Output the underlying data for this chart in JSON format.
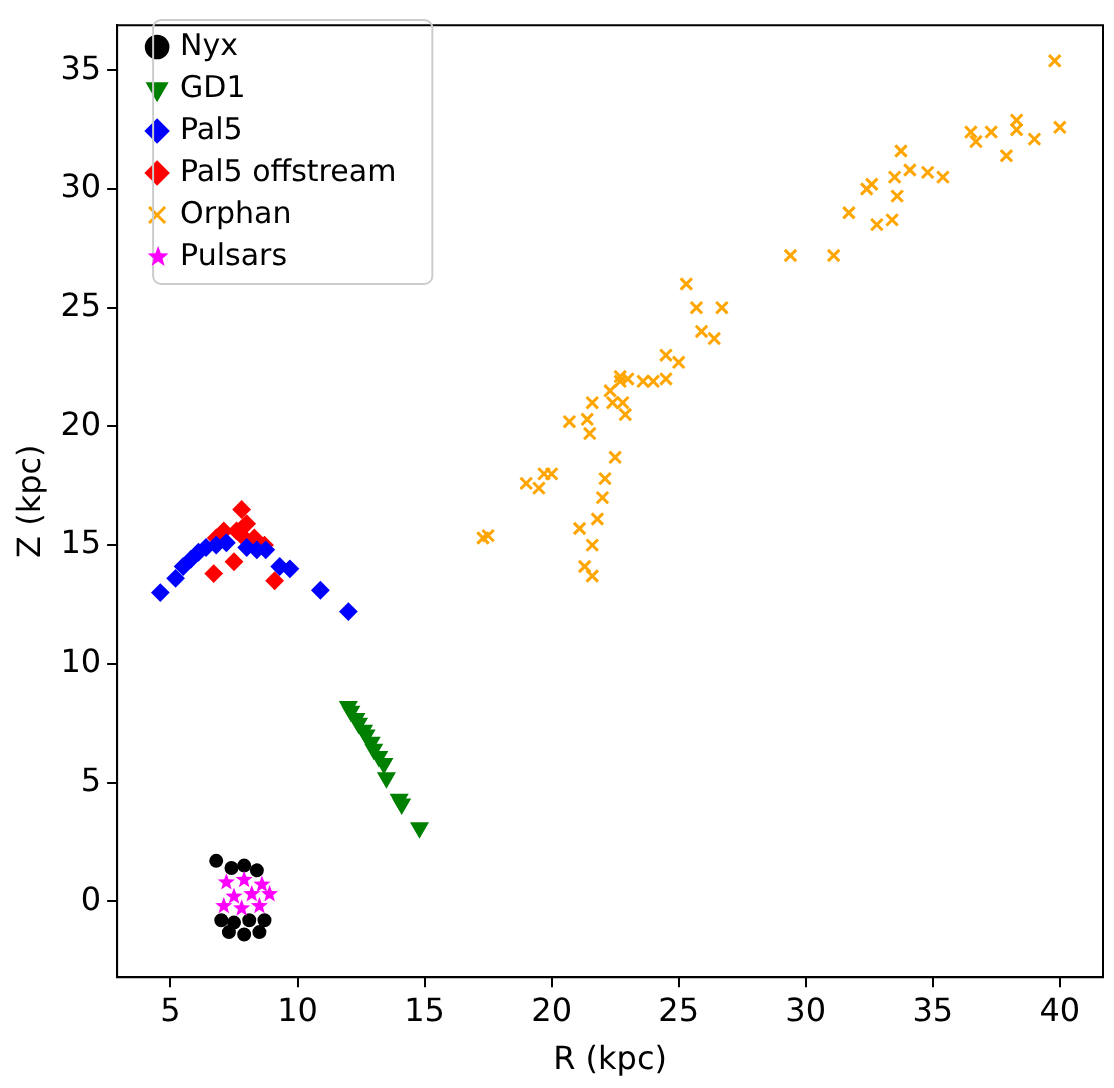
{
  "chart_data": {
    "type": "scatter",
    "xlabel": "R (kpc)",
    "ylabel": "Z (kpc)",
    "xlim": [
      2.9,
      41.7
    ],
    "ylim": [
      -3.2,
      36.9
    ],
    "xticks": [
      5,
      10,
      15,
      20,
      25,
      30,
      35,
      40
    ],
    "yticks": [
      0,
      5,
      10,
      15,
      20,
      25,
      30,
      35
    ],
    "grid": false,
    "legend": "top left",
    "series": [
      {
        "name": "Nyx",
        "color": "#000000",
        "marker": "circle",
        "x": [
          6.8,
          7.4,
          7.9,
          8.4,
          7.0,
          7.5,
          8.1,
          8.7,
          7.3,
          7.9,
          8.5
        ],
        "values": [
          1.7,
          1.4,
          1.5,
          1.3,
          -0.8,
          -0.9,
          -0.8,
          -0.8,
          -1.3,
          -1.4,
          -1.3
        ]
      },
      {
        "name": "GD1",
        "color": "#008000",
        "marker": "triangle",
        "x": [
          12.0,
          12.1,
          12.3,
          12.4,
          12.6,
          12.7,
          12.9,
          13.0,
          13.2,
          13.4,
          13.5,
          14.0,
          14.1,
          14.8
        ],
        "values": [
          8.2,
          8.0,
          7.7,
          7.5,
          7.2,
          7.0,
          6.7,
          6.4,
          6.1,
          5.8,
          5.2,
          4.3,
          4.1,
          3.1
        ]
      },
      {
        "name": "Pal5",
        "color": "#0000ff",
        "marker": "diamond",
        "x": [
          4.6,
          5.2,
          5.5,
          5.8,
          6.1,
          6.4,
          6.8,
          7.2,
          8.0,
          8.4,
          8.75,
          9.3,
          9.7,
          10.9,
          12.0
        ],
        "values": [
          13.0,
          13.6,
          14.1,
          14.4,
          14.7,
          14.9,
          15.0,
          15.1,
          14.9,
          14.8,
          14.8,
          14.1,
          14.0,
          13.1,
          12.2
        ]
      },
      {
        "name": "Pal5 offstream",
        "color": "#ff0000",
        "marker": "diamond",
        "x": [
          6.8,
          7.1,
          7.8,
          7.6,
          7.9,
          8.0,
          8.3,
          8.7,
          6.7,
          7.5,
          9.1
        ],
        "values": [
          15.3,
          15.6,
          16.5,
          15.6,
          15.3,
          15.9,
          15.3,
          15.0,
          13.8,
          14.3,
          13.5
        ]
      },
      {
        "name": "Orphan",
        "color": "#ffa500",
        "marker": "cross",
        "x": [
          17.3,
          17.5,
          19.0,
          19.5,
          19.7,
          20.0,
          21.3,
          21.6,
          21.1,
          21.6,
          21.8,
          22.0,
          22.1,
          22.5,
          20.7,
          21.4,
          21.6,
          21.5,
          22.3,
          22.4,
          22.8,
          22.9,
          22.7,
          22.7,
          23.0,
          23.6,
          24.0,
          24.5,
          24.5,
          25.0,
          25.3,
          25.7,
          25.9,
          26.4,
          26.7,
          29.4,
          31.1,
          31.7,
          32.8,
          33.4,
          32.4,
          32.6,
          33.5,
          33.6,
          33.75,
          34.1,
          34.8,
          35.4,
          36.5,
          36.7,
          37.3,
          37.9,
          38.3,
          38.3,
          39.0,
          40.0,
          39.8
        ],
        "values": [
          15.3,
          15.4,
          17.6,
          17.4,
          18.0,
          18.0,
          14.1,
          13.7,
          15.7,
          15.0,
          16.1,
          17.0,
          17.8,
          18.7,
          20.2,
          20.3,
          21.0,
          19.7,
          21.5,
          21.0,
          21.0,
          20.5,
          21.9,
          22.1,
          22.0,
          21.9,
          21.9,
          22.0,
          23.0,
          22.7,
          26.0,
          25.0,
          24.0,
          23.7,
          25.0,
          27.2,
          27.2,
          29.0,
          28.5,
          28.7,
          30.0,
          30.2,
          30.5,
          29.7,
          31.6,
          30.8,
          30.7,
          30.5,
          32.4,
          32.0,
          32.4,
          31.4,
          32.9,
          32.5,
          32.1,
          32.6,
          35.4
        ]
      },
      {
        "name": "Pulsars",
        "color": "#ff00ff",
        "marker": "star",
        "x": [
          7.2,
          7.9,
          8.6,
          7.5,
          8.2,
          8.9,
          7.1,
          7.8,
          8.5
        ],
        "values": [
          0.8,
          0.9,
          0.7,
          0.2,
          0.3,
          0.3,
          -0.2,
          -0.3,
          -0.2
        ]
      }
    ]
  }
}
